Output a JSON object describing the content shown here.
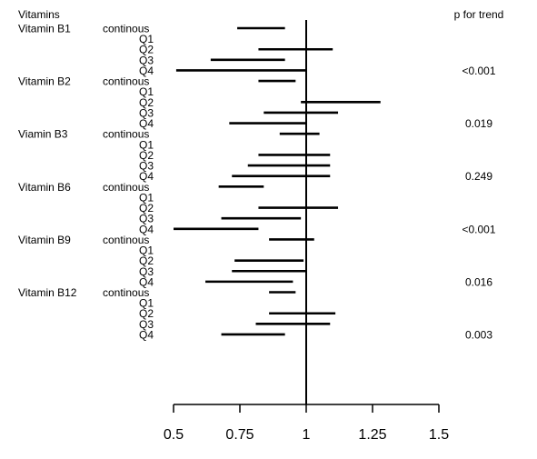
{
  "chart_data": {
    "type": "forest",
    "header_left": "Vitamins",
    "header_right": "p for trend",
    "xlim": [
      0.5,
      1.5
    ],
    "reference_line": 1,
    "x_ticks": [
      0.5,
      0.75,
      1,
      1.25,
      1.5
    ],
    "x_tick_labels": [
      "0.5",
      "0.75",
      "1",
      "1.25",
      "1.5"
    ],
    "groups": [
      {
        "name": "Vitamin B1",
        "p_trend": "<0.001",
        "rows": [
          {
            "label": "continous",
            "lo": 0.74,
            "hi": 0.92
          },
          {
            "label": "Q1",
            "lo": 1.0,
            "hi": 1.0
          },
          {
            "label": "Q2",
            "lo": 0.82,
            "hi": 1.1
          },
          {
            "label": "Q3",
            "lo": 0.64,
            "hi": 0.92
          },
          {
            "label": "Q4",
            "lo": 0.51,
            "hi": 1.0
          }
        ]
      },
      {
        "name": "Vitamin B2",
        "p_trend": "0.019",
        "rows": [
          {
            "label": "continous",
            "lo": 0.82,
            "hi": 0.96
          },
          {
            "label": "Q1",
            "lo": 1.0,
            "hi": 1.0
          },
          {
            "label": "Q2",
            "lo": 0.98,
            "hi": 1.28
          },
          {
            "label": "Q3",
            "lo": 0.84,
            "hi": 1.12
          },
          {
            "label": "Q4",
            "lo": 0.71,
            "hi": 1.0
          }
        ]
      },
      {
        "name": "Viamin B3",
        "p_trend": "0.249",
        "rows": [
          {
            "label": "continous",
            "lo": 0.9,
            "hi": 1.05
          },
          {
            "label": "Q1",
            "lo": 1.0,
            "hi": 1.0
          },
          {
            "label": "Q2",
            "lo": 0.82,
            "hi": 1.09
          },
          {
            "label": "Q3",
            "lo": 0.78,
            "hi": 1.09
          },
          {
            "label": "Q4",
            "lo": 0.72,
            "hi": 1.09
          }
        ]
      },
      {
        "name": "Vitamin B6",
        "p_trend": "<0.001",
        "rows": [
          {
            "label": "continous",
            "lo": 0.67,
            "hi": 0.84
          },
          {
            "label": "Q1",
            "lo": 1.0,
            "hi": 1.0
          },
          {
            "label": "Q2",
            "lo": 0.82,
            "hi": 1.12
          },
          {
            "label": "Q3",
            "lo": 0.68,
            "hi": 0.98
          },
          {
            "label": "Q4",
            "lo": 0.5,
            "hi": 0.82
          }
        ]
      },
      {
        "name": "Vitamin B9",
        "p_trend": "0.016",
        "rows": [
          {
            "label": "continous",
            "lo": 0.86,
            "hi": 1.03
          },
          {
            "label": "Q1",
            "lo": 1.0,
            "hi": 1.0
          },
          {
            "label": "Q2",
            "lo": 0.73,
            "hi": 0.99
          },
          {
            "label": "Q3",
            "lo": 0.72,
            "hi": 1.0
          },
          {
            "label": "Q4",
            "lo": 0.62,
            "hi": 0.95
          }
        ]
      },
      {
        "name": "Vitamin B12",
        "p_trend": "0.003",
        "rows": [
          {
            "label": "continous",
            "lo": 0.86,
            "hi": 0.96
          },
          {
            "label": "Q1",
            "lo": 1.0,
            "hi": 1.0
          },
          {
            "label": "Q2",
            "lo": 0.86,
            "hi": 1.11
          },
          {
            "label": "Q3",
            "lo": 0.81,
            "hi": 1.09
          },
          {
            "label": "Q4",
            "lo": 0.68,
            "hi": 0.92
          }
        ]
      }
    ]
  }
}
